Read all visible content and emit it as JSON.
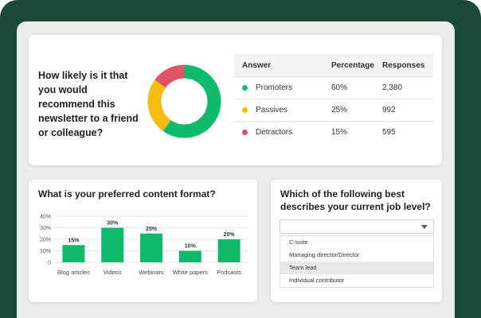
{
  "nps": {
    "question": "How likely is it that you would recommend this newsletter to a friend or colleague?",
    "table": {
      "headers": [
        "Answer",
        "Percentage",
        "Responses"
      ],
      "rows": [
        {
          "answer": "Promoters",
          "percentage": "60%",
          "responses": "2,380",
          "color": "#0fbb6b"
        },
        {
          "answer": "Passives",
          "percentage": "25%",
          "responses": "992",
          "color": "#f5bc12"
        },
        {
          "answer": "Detractors",
          "percentage": "15%",
          "responses": "595",
          "color": "#df5460"
        }
      ]
    },
    "donut": {
      "segments": [
        {
          "label": "Promoters",
          "value": 60,
          "color": "#0fbb6b"
        },
        {
          "label": "Passives",
          "value": 25,
          "color": "#f5bc12"
        },
        {
          "label": "Detractors",
          "value": 15,
          "color": "#df5460"
        }
      ]
    }
  },
  "format": {
    "question": "What is your preferred content format?"
  },
  "chart_data": {
    "type": "bar",
    "categories": [
      "Blog articles",
      "Videos",
      "Webinars",
      "White papers",
      "Podcasts"
    ],
    "values": [
      15,
      30,
      25,
      10,
      20
    ],
    "data_labels": [
      "15%",
      "30%",
      "25%",
      "10%",
      "20%"
    ],
    "y_ticks": [
      "0",
      "10%",
      "20%",
      "30%",
      "40%"
    ],
    "ylim": [
      0,
      40
    ],
    "bar_color": "#0fbb6b",
    "title": "",
    "xlabel": "",
    "ylabel": ""
  },
  "job": {
    "question": "Which of the following best describes your current job level?",
    "select_value": "",
    "options": [
      "C-suite",
      "Managing director/Director",
      "Team lead",
      "Individual contributor"
    ],
    "selected_option": "Team lead"
  },
  "colors": {
    "frame": "#1b4a36",
    "panel": "#ececec",
    "accent_green": "#0fbb6b"
  }
}
